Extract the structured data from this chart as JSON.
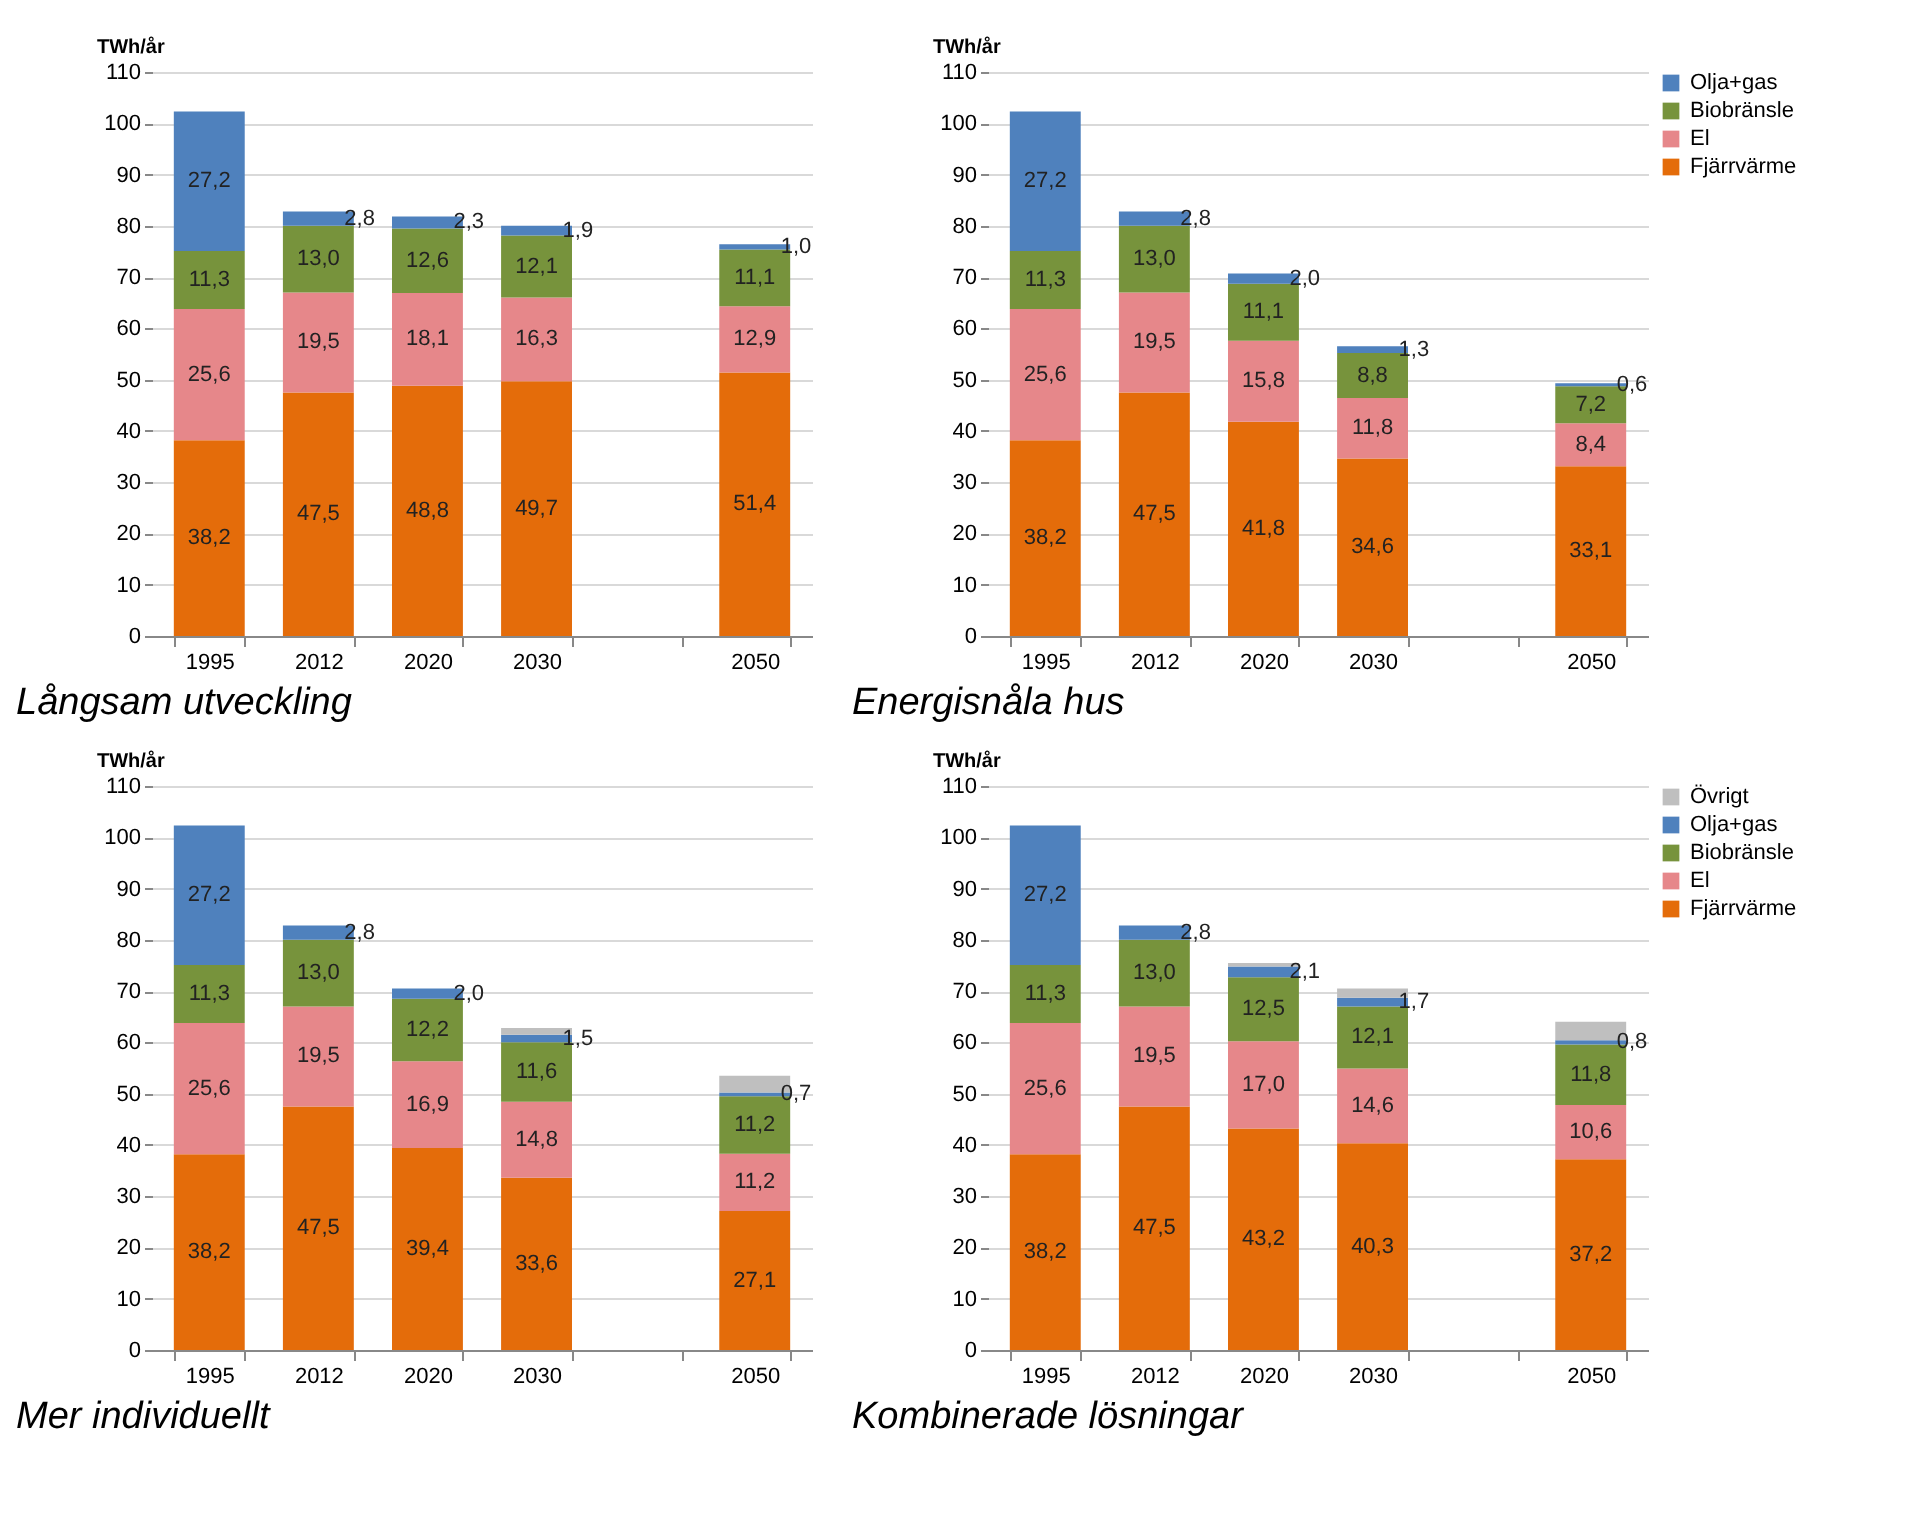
{
  "chart_data": [
    {
      "type": "bar",
      "stacked": true,
      "title": "Långsam utveckling",
      "ylabel": "TWh/år",
      "categories": [
        "1995",
        "2012",
        "2020",
        "2030",
        null,
        "2050"
      ],
      "ylim": [
        0,
        110
      ],
      "yticks": [
        0,
        10,
        20,
        30,
        40,
        50,
        60,
        70,
        80,
        90,
        100,
        110
      ],
      "grid": "y",
      "legend": "right",
      "series": [
        {
          "name": "Fjärrvärme",
          "color": "#e46c0a",
          "values": [
            38.2,
            47.5,
            48.8,
            49.7,
            null,
            51.4
          ],
          "value_labels": [
            "38,2",
            "47,5",
            "48,8",
            "49,7",
            null,
            "51,4"
          ]
        },
        {
          "name": "El",
          "color": "#e6878a",
          "values": [
            25.6,
            19.5,
            18.1,
            16.3,
            null,
            12.9
          ],
          "value_labels": [
            "25,6",
            "19,5",
            "18,1",
            "16,3",
            null,
            "12,9"
          ]
        },
        {
          "name": "Biobränsle",
          "color": "#77933c",
          "values": [
            11.3,
            13.0,
            12.6,
            12.1,
            null,
            11.1
          ],
          "value_labels": [
            "11,3",
            "13,0",
            "12,6",
            "12,1",
            null,
            "11,1"
          ]
        },
        {
          "name": "Olja+gas",
          "color": "#4f81bd",
          "values": [
            27.2,
            2.8,
            2.3,
            1.9,
            null,
            1.0
          ],
          "value_labels": [
            "27,2",
            "2,8",
            "2,3",
            "1,9",
            null,
            "1,0"
          ]
        }
      ]
    },
    {
      "type": "bar",
      "stacked": true,
      "title": "Energisnåla hus",
      "ylabel": "TWh/år",
      "categories": [
        "1995",
        "2012",
        "2020",
        "2030",
        null,
        "2050"
      ],
      "ylim": [
        0,
        110
      ],
      "yticks": [
        0,
        10,
        20,
        30,
        40,
        50,
        60,
        70,
        80,
        90,
        100,
        110
      ],
      "grid": "y",
      "legend": "right",
      "series": [
        {
          "name": "Fjärrvärme",
          "color": "#e46c0a",
          "values": [
            38.2,
            47.5,
            41.8,
            34.6,
            null,
            33.1
          ],
          "value_labels": [
            "38,2",
            "47,5",
            "41,8",
            "34,6",
            null,
            "33,1"
          ]
        },
        {
          "name": "El",
          "color": "#e6878a",
          "values": [
            25.6,
            19.5,
            15.8,
            11.8,
            null,
            8.4
          ],
          "value_labels": [
            "25,6",
            "19,5",
            "15,8",
            "11,8",
            null,
            "8,4"
          ]
        },
        {
          "name": "Biobränsle",
          "color": "#77933c",
          "values": [
            11.3,
            13.0,
            11.1,
            8.8,
            null,
            7.2
          ],
          "value_labels": [
            "11,3",
            "13,0",
            "11,1",
            "8,8",
            null,
            "7,2"
          ]
        },
        {
          "name": "Olja+gas",
          "color": "#4f81bd",
          "values": [
            27.2,
            2.8,
            2.0,
            1.3,
            null,
            0.6
          ],
          "value_labels": [
            "27,2",
            "2,8",
            "2,0",
            "1,3",
            null,
            "0,6"
          ]
        }
      ]
    },
    {
      "type": "bar",
      "stacked": true,
      "title": "Mer individuellt",
      "ylabel": "TWh/år",
      "categories": [
        "1995",
        "2012",
        "2020",
        "2030",
        null,
        "2050"
      ],
      "ylim": [
        0,
        110
      ],
      "yticks": [
        0,
        10,
        20,
        30,
        40,
        50,
        60,
        70,
        80,
        90,
        100,
        110
      ],
      "grid": "y",
      "legend": "right",
      "series": [
        {
          "name": "Fjärrvärme",
          "color": "#e46c0a",
          "values": [
            38.2,
            47.5,
            39.4,
            33.6,
            null,
            27.1
          ],
          "value_labels": [
            "38,2",
            "47,5",
            "39,4",
            "33,6",
            null,
            "27,1"
          ]
        },
        {
          "name": "El",
          "color": "#e6878a",
          "values": [
            25.6,
            19.5,
            16.9,
            14.8,
            null,
            11.2
          ],
          "value_labels": [
            "25,6",
            "19,5",
            "16,9",
            "14,8",
            null,
            "11,2"
          ]
        },
        {
          "name": "Biobränsle",
          "color": "#77933c",
          "values": [
            11.3,
            13.0,
            12.2,
            11.6,
            null,
            11.2
          ],
          "value_labels": [
            "11,3",
            "13,0",
            "12,2",
            "11,6",
            null,
            "11,2"
          ]
        },
        {
          "name": "Olja+gas",
          "color": "#4f81bd",
          "values": [
            27.2,
            2.8,
            2.0,
            1.5,
            null,
            0.7
          ],
          "value_labels": [
            "27,2",
            "2,8",
            "2,0",
            "1,5",
            null,
            "0,7"
          ]
        },
        {
          "name": "Övrigt",
          "color": "#bfbfbf",
          "values": [
            null,
            null,
            null,
            1.3,
            null,
            3.3
          ]
        }
      ]
    },
    {
      "type": "bar",
      "stacked": true,
      "title": "Kombinerade lösningar",
      "ylabel": "TWh/år",
      "categories": [
        "1995",
        "2012",
        "2020",
        "2030",
        null,
        "2050"
      ],
      "ylim": [
        0,
        110
      ],
      "yticks": [
        0,
        10,
        20,
        30,
        40,
        50,
        60,
        70,
        80,
        90,
        100,
        110
      ],
      "grid": "y",
      "legend": "right",
      "series": [
        {
          "name": "Fjärrvärme",
          "color": "#e46c0a",
          "values": [
            38.2,
            47.5,
            43.2,
            40.3,
            null,
            37.2
          ],
          "value_labels": [
            "38,2",
            "47,5",
            "43,2",
            "40,3",
            null,
            "37,2"
          ]
        },
        {
          "name": "El",
          "color": "#e6878a",
          "values": [
            25.6,
            19.5,
            17.0,
            14.6,
            null,
            10.6
          ],
          "value_labels": [
            "25,6",
            "19,5",
            "17,0",
            "14,6",
            null,
            "10,6"
          ]
        },
        {
          "name": "Biobränsle",
          "color": "#77933c",
          "values": [
            11.3,
            13.0,
            12.5,
            12.1,
            null,
            11.8
          ],
          "value_labels": [
            "11,3",
            "13,0",
            "12,5",
            "12,1",
            null,
            "11,8"
          ]
        },
        {
          "name": "Olja+gas",
          "color": "#4f81bd",
          "values": [
            27.2,
            2.8,
            2.1,
            1.7,
            null,
            0.8
          ],
          "value_labels": [
            "27,2",
            "2,8",
            "2,1",
            "1,7",
            null,
            "0,8"
          ]
        },
        {
          "name": "Övrigt",
          "color": "#bfbfbf",
          "values": [
            null,
            null,
            0.7,
            1.8,
            null,
            3.6
          ]
        }
      ]
    }
  ]
}
